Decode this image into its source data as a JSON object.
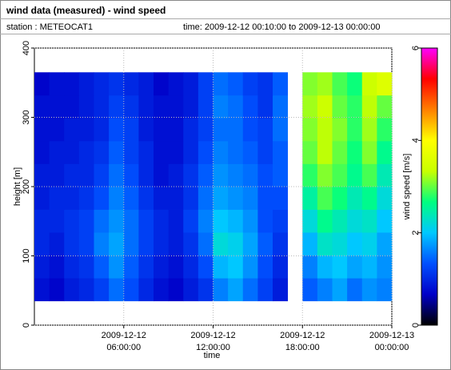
{
  "chart_data": {
    "type": "heatmap",
    "title": "wind data (measured) - wind speed",
    "station_label": "station : METEOCAT1",
    "time_label": "time: 2009-12-12 00:10:00 to 2009-12-13 00:00:00",
    "xlabel": "time",
    "ylabel": "height [m]",
    "zlabel": "wind speed [m/s]",
    "xlim": [
      "2009-12-12 00:00:00",
      "2009-12-13 00:00:00"
    ],
    "xticks": [
      "2009-12-12 06:00:00",
      "2009-12-12 12:00:00",
      "2009-12-12 18:00:00",
      "2009-12-13 00:00:00"
    ],
    "ylim": [
      0,
      400
    ],
    "yticks": [
      0,
      100,
      200,
      300,
      400
    ],
    "zlim": [
      0,
      6
    ],
    "zticks": [
      0,
      2,
      4,
      6
    ],
    "grid": true,
    "colormap": [
      "#000000",
      "#0000c8",
      "#0050ff",
      "#00c8ff",
      "#00ff80",
      "#c8ff00",
      "#ffff00",
      "#ff8000",
      "#ff0000",
      "#ff00ff"
    ],
    "x_bins": [
      "2009-12-12 00:00:00",
      "2009-12-12 01:00:00",
      "2009-12-12 02:00:00",
      "2009-12-12 03:00:00",
      "2009-12-12 04:00:00",
      "2009-12-12 05:00:00",
      "2009-12-12 06:00:00",
      "2009-12-12 07:00:00",
      "2009-12-12 08:00:00",
      "2009-12-12 09:00:00",
      "2009-12-12 10:00:00",
      "2009-12-12 11:00:00",
      "2009-12-12 12:00:00",
      "2009-12-12 13:00:00",
      "2009-12-12 14:00:00",
      "2009-12-12 15:00:00",
      "2009-12-12 16:00:00",
      "2009-12-12 17:00:00",
      "2009-12-12 18:00:00",
      "2009-12-12 19:00:00",
      "2009-12-12 20:00:00",
      "2009-12-12 21:00:00",
      "2009-12-12 22:00:00",
      "2009-12-12 23:00:00",
      "2009-12-13 00:00:00"
    ],
    "y_bins": [
      35,
      68,
      101,
      134,
      167,
      200,
      233,
      266,
      299,
      332,
      365
    ],
    "values": [
      [
        0.8,
        0.7,
        0.9,
        1.0,
        1.2,
        1.5,
        1.3,
        1.0,
        0.8,
        0.7,
        0.9,
        1.1,
        1.6,
        1.8,
        1.5,
        1.2,
        0.9,
        null,
        1.4,
        1.6,
        1.8,
        1.5,
        1.7,
        1.6
      ],
      [
        0.9,
        0.8,
        1.0,
        1.1,
        1.4,
        1.7,
        1.4,
        1.1,
        0.9,
        0.8,
        1.0,
        1.3,
        1.9,
        2.0,
        1.7,
        1.3,
        1.0,
        null,
        1.6,
        1.9,
        2.0,
        1.8,
        1.9,
        1.7
      ],
      [
        1.0,
        0.9,
        1.1,
        1.2,
        1.6,
        1.8,
        1.5,
        1.2,
        1.0,
        0.9,
        1.1,
        1.5,
        2.2,
        2.1,
        1.8,
        1.4,
        1.1,
        null,
        1.9,
        2.3,
        2.2,
        2.0,
        2.1,
        1.8
      ],
      [
        1.0,
        1.0,
        1.1,
        1.2,
        1.5,
        1.7,
        1.5,
        1.2,
        1.0,
        0.9,
        1.2,
        1.6,
        2.0,
        1.9,
        1.7,
        1.3,
        1.2,
        null,
        2.2,
        2.6,
        2.4,
        2.2,
        2.3,
        2.0
      ],
      [
        0.9,
        1.0,
        1.0,
        1.1,
        1.3,
        1.6,
        1.4,
        1.1,
        0.9,
        0.9,
        1.1,
        1.5,
        1.8,
        1.7,
        1.6,
        1.3,
        1.3,
        null,
        2.5,
        2.9,
        2.7,
        2.4,
        2.6,
        2.2
      ],
      [
        0.9,
        0.9,
        1.0,
        1.0,
        1.2,
        1.5,
        1.3,
        1.0,
        0.8,
        0.9,
        1.1,
        1.4,
        1.7,
        1.6,
        1.5,
        1.3,
        1.4,
        null,
        2.8,
        3.1,
        2.9,
        2.6,
        2.9,
        2.4
      ],
      [
        0.8,
        0.9,
        0.9,
        1.0,
        1.1,
        1.4,
        1.2,
        1.0,
        0.8,
        0.8,
        1.0,
        1.3,
        1.6,
        1.5,
        1.4,
        1.2,
        1.4,
        null,
        3.0,
        3.3,
        3.0,
        2.7,
        3.1,
        2.6
      ],
      [
        0.8,
        0.8,
        0.9,
        0.9,
        1.0,
        1.3,
        1.2,
        0.9,
        0.8,
        0.8,
        1.0,
        1.2,
        1.5,
        1.5,
        1.3,
        1.2,
        1.5,
        null,
        3.1,
        3.3,
        3.1,
        2.8,
        3.2,
        2.8
      ],
      [
        0.8,
        0.8,
        0.8,
        0.9,
        1.0,
        1.2,
        1.1,
        0.9,
        0.8,
        0.8,
        0.9,
        1.2,
        1.6,
        1.5,
        1.3,
        1.1,
        1.5,
        null,
        3.2,
        3.4,
        3.0,
        2.8,
        3.3,
        3.0
      ],
      [
        0.7,
        0.8,
        0.8,
        0.9,
        1.0,
        1.1,
        1.0,
        0.9,
        0.7,
        0.8,
        0.9,
        1.2,
        1.5,
        1.4,
        1.2,
        1.1,
        1.4,
        null,
        3.1,
        3.2,
        2.9,
        2.7,
        3.4,
        3.6
      ]
    ]
  }
}
